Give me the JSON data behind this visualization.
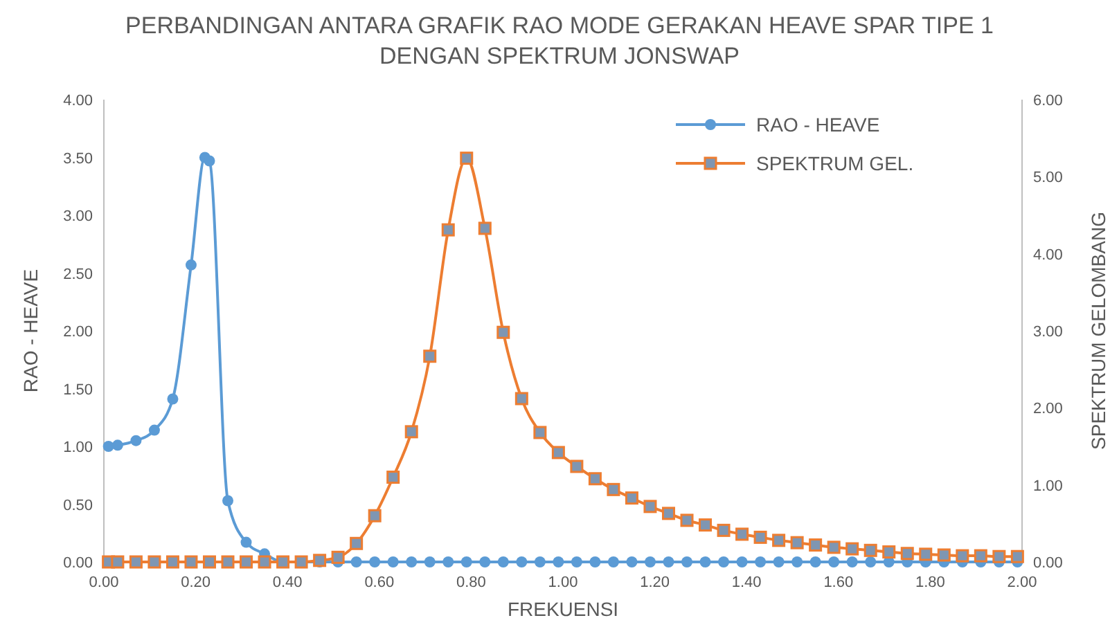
{
  "chart_data": {
    "type": "line",
    "title": "PERBANDINGAN ANTARA GRAFIK RAO MODE GERAKAN HEAVE SPAR TIPE 1 DENGAN SPEKTRUM JONSWAP",
    "xlabel": "FREKUENSI",
    "ylabel": "RAO - HEAVE",
    "y2label": "SPEKTRUM GELOMBANG",
    "xlim": [
      0,
      2
    ],
    "xticks": [
      {
        "value": 0,
        "label": "0.00"
      },
      {
        "value": 0.2,
        "label": "0.20"
      },
      {
        "value": 0.4,
        "label": "0.40"
      },
      {
        "value": 0.6,
        "label": "0.60"
      },
      {
        "value": 0.8,
        "label": "0.80"
      },
      {
        "value": 1,
        "label": "1.00"
      },
      {
        "value": 1.2,
        "label": "1.20"
      },
      {
        "value": 1.4,
        "label": "1.40"
      },
      {
        "value": 1.6,
        "label": "1.60"
      },
      {
        "value": 1.8,
        "label": "1.80"
      },
      {
        "value": 2,
        "label": "2.00"
      }
    ],
    "ylim": [
      0,
      4
    ],
    "yticks": [
      {
        "value": 0,
        "label": "0.00"
      },
      {
        "value": 0.5,
        "label": "0.50"
      },
      {
        "value": 1,
        "label": "1.00"
      },
      {
        "value": 1.5,
        "label": "1.50"
      },
      {
        "value": 2,
        "label": "2.00"
      },
      {
        "value": 2.5,
        "label": "2.50"
      },
      {
        "value": 3,
        "label": "3.00"
      },
      {
        "value": 3.5,
        "label": "3.50"
      },
      {
        "value": 4,
        "label": "4.00"
      }
    ],
    "y2lim": [
      0,
      6
    ],
    "y2ticks": [
      {
        "value": 0,
        "label": "0.00"
      },
      {
        "value": 1,
        "label": "1.00"
      },
      {
        "value": 2,
        "label": "2.00"
      },
      {
        "value": 3,
        "label": "3.00"
      },
      {
        "value": 4,
        "label": "4.00"
      },
      {
        "value": 5,
        "label": "5.00"
      },
      {
        "value": 6,
        "label": "6.00"
      }
    ],
    "legend": "top right",
    "grid": false,
    "series": [
      {
        "name": "RAO - HEAVE",
        "color": "#5b9bd5",
        "marker": "circle",
        "x": [
          0.01,
          0.03,
          0.07,
          0.11,
          0.15,
          0.19,
          0.22,
          0.23,
          0.27,
          0.31,
          0.35,
          0.39,
          0.43,
          0.47,
          0.51,
          0.55,
          0.59,
          0.63,
          0.67,
          0.71,
          0.75,
          0.79,
          0.83,
          0.87,
          0.91,
          0.95,
          0.99,
          1.03,
          1.07,
          1.11,
          1.15,
          1.19,
          1.23,
          1.27,
          1.31,
          1.35,
          1.39,
          1.43,
          1.47,
          1.51,
          1.55,
          1.59,
          1.63,
          1.67,
          1.71,
          1.75,
          1.79,
          1.83,
          1.87,
          1.91,
          1.95,
          1.99
        ],
        "values": [
          1.0,
          1.01,
          1.05,
          1.14,
          1.41,
          2.57,
          3.5,
          3.47,
          0.53,
          0.17,
          0.07,
          0,
          0,
          0,
          0,
          0,
          0,
          0,
          0,
          0,
          0,
          0,
          0,
          0,
          0,
          0,
          0,
          0,
          0,
          0,
          0,
          0,
          0,
          0,
          0,
          0,
          0,
          0,
          0,
          0,
          0,
          0,
          0,
          0,
          0,
          0,
          0,
          0,
          0,
          0,
          0,
          0
        ]
      },
      {
        "name": "SPEKTRUM GEL.",
        "color": "#ed7d31",
        "marker": "square",
        "axis": "y2",
        "x": [
          0.01,
          0.03,
          0.07,
          0.11,
          0.15,
          0.19,
          0.23,
          0.27,
          0.31,
          0.35,
          0.39,
          0.43,
          0.47,
          0.51,
          0.55,
          0.59,
          0.63,
          0.67,
          0.71,
          0.75,
          0.79,
          0.83,
          0.87,
          0.91,
          0.95,
          0.99,
          1.03,
          1.07,
          1.11,
          1.15,
          1.19,
          1.23,
          1.27,
          1.31,
          1.35,
          1.39,
          1.43,
          1.47,
          1.51,
          1.55,
          1.59,
          1.63,
          1.67,
          1.71,
          1.75,
          1.79,
          1.83,
          1.87,
          1.91,
          1.95,
          1.99
        ],
        "values": [
          0,
          0,
          0,
          0,
          0,
          0,
          0,
          0,
          0,
          0,
          0,
          0,
          0.02,
          0.06,
          0.24,
          0.6,
          1.1,
          1.69,
          2.67,
          4.31,
          5.24,
          4.33,
          2.98,
          2.12,
          1.68,
          1.42,
          1.24,
          1.08,
          0.94,
          0.83,
          0.72,
          0.63,
          0.54,
          0.48,
          0.41,
          0.36,
          0.32,
          0.28,
          0.25,
          0.22,
          0.19,
          0.17,
          0.15,
          0.13,
          0.11,
          0.1,
          0.09,
          0.08,
          0.08,
          0.07,
          0.07
        ]
      }
    ]
  }
}
